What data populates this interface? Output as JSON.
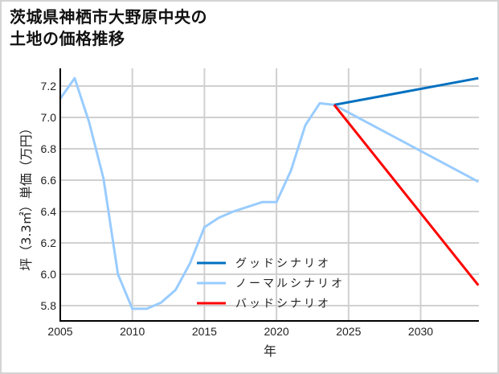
{
  "title_lines": [
    "茨城県神栖市大野原中央の",
    "土地の価格推移"
  ],
  "chart_data": {
    "type": "line",
    "title": "茨城県神栖市大野原中央の土地の価格推移",
    "xlabel": "年",
    "ylabel": "坪（3.3㎡）単価（万円）",
    "xlim": [
      2005,
      2034
    ],
    "ylim": [
      5.7,
      7.33
    ],
    "x_ticks": [
      2005,
      2010,
      2015,
      2020,
      2025,
      2030
    ],
    "y_ticks": [
      5.8,
      6.0,
      6.2,
      6.4,
      6.6,
      6.8,
      7.0,
      7.2
    ],
    "grid": true,
    "legend_position": "lower center",
    "series": [
      {
        "name": "グッドシナリオ",
        "color": "#0070c0",
        "x": [
          2024,
          2034
        ],
        "values": [
          7.08,
          7.25
        ]
      },
      {
        "name": "ノーマルシナリオ",
        "color": "#99ccff",
        "x": [
          2005,
          2006,
          2007,
          2008,
          2009,
          2010,
          2011,
          2012,
          2013,
          2014,
          2015,
          2016,
          2017,
          2018,
          2019,
          2020,
          2021,
          2022,
          2023,
          2024,
          2034
        ],
        "values": [
          7.12,
          7.25,
          6.97,
          6.61,
          6.0,
          5.78,
          5.78,
          5.82,
          5.9,
          6.07,
          6.3,
          6.36,
          6.4,
          6.43,
          6.46,
          6.46,
          6.66,
          6.95,
          7.09,
          7.08,
          6.59
        ]
      },
      {
        "name": "バッドシナリオ",
        "color": "#ff0000",
        "x": [
          2024,
          2034
        ],
        "values": [
          7.08,
          5.93
        ]
      }
    ]
  }
}
